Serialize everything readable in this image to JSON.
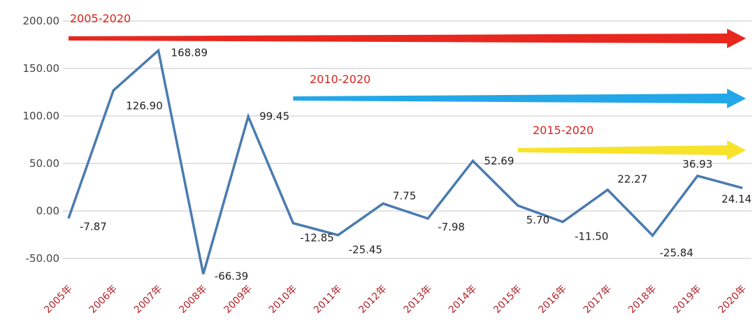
{
  "chart_data": {
    "type": "line",
    "title": "",
    "xlabel": "",
    "ylabel": "",
    "categories": [
      "2005年",
      "2006年",
      "2007年",
      "2008年",
      "2009年",
      "2010年",
      "2011年",
      "2012年",
      "2013年",
      "2014年",
      "2015年",
      "2016年",
      "2017年",
      "2018年",
      "2019年",
      "2020年"
    ],
    "series": [
      {
        "values": [
          -7.87,
          126.9,
          168.89,
          -66.39,
          99.45,
          -12.85,
          -25.45,
          7.75,
          -7.98,
          52.69,
          5.7,
          -11.5,
          22.27,
          -25.84,
          36.93,
          24.14
        ],
        "labels": [
          "-7.87",
          "126.90",
          "168.89",
          "-66.39",
          "99.45",
          "-12.85",
          "-25.45",
          "7.75",
          "-7.98",
          "52.69",
          "5.70",
          "-11.50",
          "22.27",
          "-25.84",
          "36.93",
          "24.14"
        ],
        "color": "#4a7bb0"
      }
    ],
    "ylim": [
      -50,
      200
    ],
    "yticks": [
      "200.00",
      "150.00",
      "100.00",
      "50.00",
      "0.00",
      "-50.00"
    ],
    "ytick_values": [
      200,
      150,
      100,
      50,
      0,
      -50
    ],
    "grid": true,
    "legend": "none",
    "annotations": [
      {
        "text": "2005-2020",
        "from": "2005年",
        "to": "2020年",
        "color": "#e8281e"
      },
      {
        "text": "2010-2020",
        "from": "2010年",
        "to": "2020年",
        "color": "#23a7e8"
      },
      {
        "text": "2015-2020",
        "from": "2015年",
        "to": "2020年",
        "color": "#f7e32a"
      }
    ],
    "annotation_text_color": "#d8261e",
    "xtick_color": "#b2232a"
  }
}
